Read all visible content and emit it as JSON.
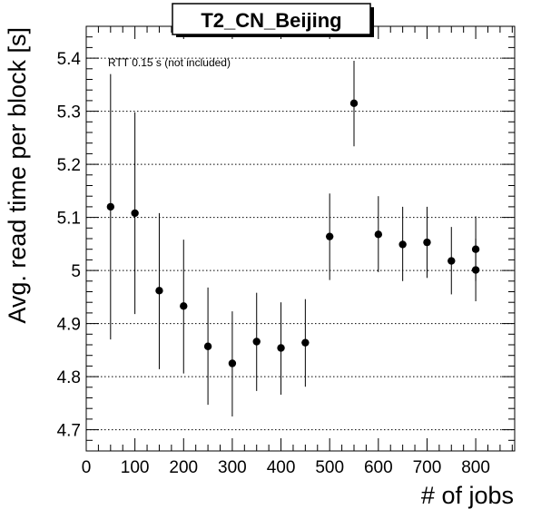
{
  "chart_data": {
    "type": "scatter",
    "title": "T2_CN_Beijing",
    "xlabel": "# of jobs",
    "ylabel": "Avg. read time per block [s]",
    "annotation": "RTT 0.15 s (not included)",
    "xlim": [
      0,
      880
    ],
    "ylim": [
      4.66,
      5.46
    ],
    "x_ticks": [
      0,
      100,
      200,
      300,
      400,
      500,
      600,
      700,
      800
    ],
    "y_ticks": [
      4.7,
      4.8,
      4.9,
      5,
      5.1,
      5.2,
      5.3,
      5.4
    ],
    "y_tick_labels": [
      "4.7",
      "4.8",
      "4.9",
      "5",
      "5.1",
      "5.2",
      "5.3",
      "5.4"
    ],
    "grid": "horizontal dotted",
    "points": [
      {
        "x": 50,
        "y": 5.12,
        "err_low": 4.87,
        "err_high": 5.37
      },
      {
        "x": 100,
        "y": 5.108,
        "err_low": 4.918,
        "err_high": 5.298
      },
      {
        "x": 150,
        "y": 4.962,
        "err_low": 4.814,
        "err_high": 5.108
      },
      {
        "x": 200,
        "y": 4.933,
        "err_low": 4.806,
        "err_high": 5.058
      },
      {
        "x": 250,
        "y": 4.857,
        "err_low": 4.747,
        "err_high": 4.968
      },
      {
        "x": 300,
        "y": 4.825,
        "err_low": 4.725,
        "err_high": 4.923
      },
      {
        "x": 350,
        "y": 4.866,
        "err_low": 4.773,
        "err_high": 4.958
      },
      {
        "x": 400,
        "y": 4.854,
        "err_low": 4.766,
        "err_high": 4.94
      },
      {
        "x": 450,
        "y": 4.864,
        "err_low": 4.781,
        "err_high": 4.946
      },
      {
        "x": 500,
        "y": 5.064,
        "err_low": 4.982,
        "err_high": 5.145
      },
      {
        "x": 550,
        "y": 5.315,
        "err_low": 5.234,
        "err_high": 5.395
      },
      {
        "x": 600,
        "y": 5.068,
        "err_low": 4.997,
        "err_high": 5.14
      },
      {
        "x": 650,
        "y": 5.049,
        "err_low": 4.98,
        "err_high": 5.12
      },
      {
        "x": 700,
        "y": 5.053,
        "err_low": 4.986,
        "err_high": 5.12
      },
      {
        "x": 750,
        "y": 5.018,
        "err_low": 4.955,
        "err_high": 5.082
      },
      {
        "x": 800,
        "y": 5.04,
        "err_low": 4.98,
        "err_high": 5.102
      },
      {
        "x": 800,
        "y": 5.001,
        "err_low": 4.942,
        "err_high": 5.06
      }
    ],
    "marker_color": "#000000"
  }
}
